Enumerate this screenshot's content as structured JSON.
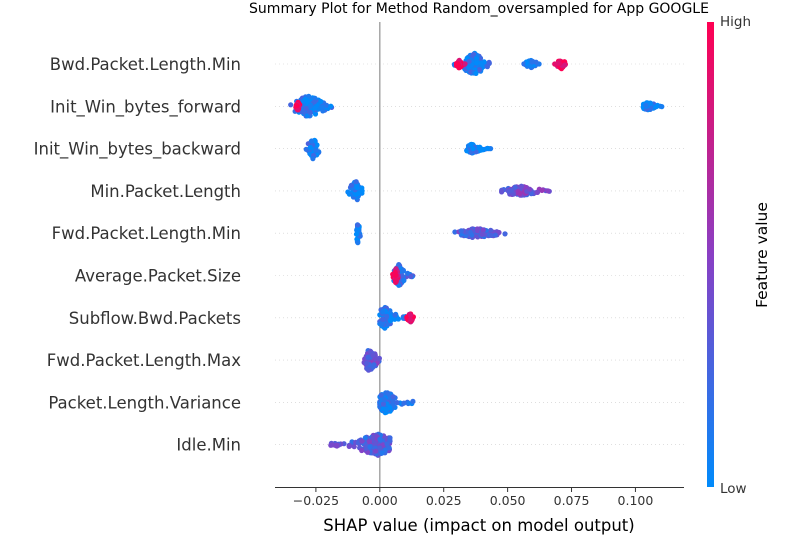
{
  "chart_data": {
    "type": "scatter",
    "title": "Summary Plot for Method Random_oversampled for App GOOGLE",
    "xlabel": "SHAP value (impact on model output)",
    "xlim": [
      -0.041,
      0.119
    ],
    "x_ticks": [
      -0.025,
      0.0,
      0.025,
      0.05,
      0.075,
      0.1
    ],
    "x_tick_labels": [
      "−0.025",
      "0.000",
      "0.025",
      "0.050",
      "0.075",
      "0.100"
    ],
    "grid": false,
    "colorbar": {
      "label": "Feature value",
      "high_label": "High",
      "low_label": "Low",
      "high_color": "#ff0052",
      "mid_color": "#8a3fc4",
      "low_color": "#008bfb"
    },
    "features": [
      {
        "name": "Bwd.Packet.Length.Min",
        "clusters": [
          {
            "min": 0.029,
            "max": 0.043,
            "center": 0.037,
            "spread": 1.0,
            "color": 0.1
          },
          {
            "min": 0.03,
            "max": 0.034,
            "center": 0.031,
            "spread": 0.35,
            "color": 0.95
          },
          {
            "min": 0.055,
            "max": 0.063,
            "center": 0.059,
            "spread": 0.35,
            "color": 0.05
          },
          {
            "min": 0.068,
            "max": 0.073,
            "center": 0.071,
            "spread": 0.45,
            "color": 0.95
          }
        ]
      },
      {
        "name": "Init_Win_bytes_forward",
        "clusters": [
          {
            "min": -0.035,
            "max": -0.018,
            "center": -0.028,
            "spread": 1.0,
            "color": 0.1
          },
          {
            "min": -0.033,
            "max": -0.031,
            "center": -0.032,
            "spread": 0.4,
            "color": 0.95
          },
          {
            "min": 0.102,
            "max": 0.111,
            "center": 0.105,
            "spread": 0.35,
            "color": 0.05
          }
        ]
      },
      {
        "name": "Init_Win_bytes_backward",
        "clusters": [
          {
            "min": -0.029,
            "max": -0.023,
            "center": -0.026,
            "spread": 1.0,
            "color": 0.1
          },
          {
            "min": 0.033,
            "max": 0.044,
            "center": 0.036,
            "spread": 0.4,
            "color": 0.05
          }
        ]
      },
      {
        "name": "Min.Packet.Length",
        "clusters": [
          {
            "min": -0.0125,
            "max": -0.0065,
            "center": -0.0095,
            "spread": 1.0,
            "color": 0.05
          },
          {
            "min": 0.047,
            "max": 0.067,
            "center": 0.055,
            "spread": 0.45,
            "color": 0.4
          }
        ]
      },
      {
        "name": "Fwd.Packet.Length.Min",
        "clusters": [
          {
            "min": -0.0095,
            "max": -0.0075,
            "center": -0.0085,
            "spread": 1.0,
            "color": 0.05
          },
          {
            "min": 0.027,
            "max": 0.049,
            "center": 0.038,
            "spread": 0.45,
            "color": 0.3
          }
        ]
      },
      {
        "name": "Average.Packet.Size",
        "clusters": [
          {
            "min": 0.005,
            "max": 0.013,
            "center": 0.0075,
            "spread": 1.0,
            "color": 0.2
          },
          {
            "min": 0.005,
            "max": 0.0075,
            "center": 0.0063,
            "spread": 0.7,
            "color": 0.85
          }
        ]
      },
      {
        "name": "Subflow.Bwd.Packets",
        "clusters": [
          {
            "min": 0.0,
            "max": 0.011,
            "center": 0.002,
            "spread": 1.0,
            "color": 0.1
          },
          {
            "min": 0.009,
            "max": 0.0135,
            "center": 0.012,
            "spread": 0.4,
            "color": 0.9
          }
        ]
      },
      {
        "name": "Fwd.Packet.Length.Max",
        "clusters": [
          {
            "min": -0.0085,
            "max": 0.0,
            "center": -0.004,
            "spread": 1.0,
            "color": 0.35
          }
        ]
      },
      {
        "name": "Packet.Length.Variance",
        "clusters": [
          {
            "min": 0.0,
            "max": 0.013,
            "center": 0.0025,
            "spread": 1.0,
            "color": 0.1
          }
        ]
      },
      {
        "name": "Idle.Min",
        "clusters": [
          {
            "min": -0.0195,
            "max": 0.004,
            "center": -0.001,
            "spread": 1.0,
            "color": 0.3
          }
        ]
      }
    ]
  }
}
